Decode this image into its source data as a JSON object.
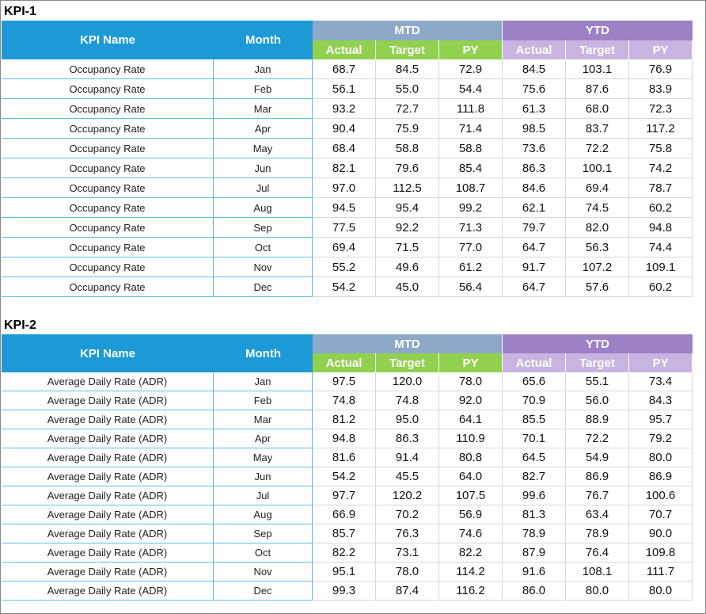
{
  "tables": [
    {
      "title": "KPI-1",
      "headers": {
        "kpi_name": "KPI Name",
        "month": "Month",
        "mtd": "MTD",
        "ytd": "YTD",
        "mtd_columns": [
          "Actual",
          "Target",
          "PY"
        ],
        "ytd_columns": [
          "Actual",
          "Target",
          "PY"
        ]
      },
      "rows": [
        [
          "Occupancy Rate",
          "Jan",
          "68.7",
          "84.5",
          "72.9",
          "84.5",
          "103.1",
          "76.9"
        ],
        [
          "Occupancy Rate",
          "Feb",
          "56.1",
          "55.0",
          "54.4",
          "75.6",
          "87.6",
          "83.9"
        ],
        [
          "Occupancy Rate",
          "Mar",
          "93.2",
          "72.7",
          "111.8",
          "61.3",
          "68.0",
          "72.3"
        ],
        [
          "Occupancy Rate",
          "Apr",
          "90.4",
          "75.9",
          "71.4",
          "98.5",
          "83.7",
          "117.2"
        ],
        [
          "Occupancy Rate",
          "May",
          "68.4",
          "58.8",
          "58.8",
          "73.6",
          "72.2",
          "75.8"
        ],
        [
          "Occupancy Rate",
          "Jun",
          "82.1",
          "79.6",
          "85.4",
          "86.3",
          "100.1",
          "74.2"
        ],
        [
          "Occupancy Rate",
          "Jul",
          "97.0",
          "112.5",
          "108.7",
          "84.6",
          "69.4",
          "78.7"
        ],
        [
          "Occupancy Rate",
          "Aug",
          "94.5",
          "95.4",
          "99.2",
          "62.1",
          "74.5",
          "60.2"
        ],
        [
          "Occupancy Rate",
          "Sep",
          "77.5",
          "92.2",
          "71.3",
          "79.7",
          "82.0",
          "94.8"
        ],
        [
          "Occupancy Rate",
          "Oct",
          "69.4",
          "71.5",
          "77.0",
          "64.7",
          "56.3",
          "74.4"
        ],
        [
          "Occupancy Rate",
          "Nov",
          "55.2",
          "49.6",
          "61.2",
          "91.7",
          "107.2",
          "109.1"
        ],
        [
          "Occupancy Rate",
          "Dec",
          "54.2",
          "45.0",
          "56.4",
          "64.7",
          "57.6",
          "60.2"
        ]
      ]
    },
    {
      "title": "KPI-2",
      "headers": {
        "kpi_name": "KPI Name",
        "month": "Month",
        "mtd": "MTD",
        "ytd": "YTD",
        "mtd_columns": [
          "Actual",
          "Target",
          "PY"
        ],
        "ytd_columns": [
          "Actual",
          "Target",
          "PY"
        ]
      },
      "rows": [
        [
          "Average Daily Rate (ADR)",
          "Jan",
          "97.5",
          "120.0",
          "78.0",
          "65.6",
          "55.1",
          "73.4"
        ],
        [
          "Average Daily Rate (ADR)",
          "Feb",
          "74.8",
          "74.8",
          "92.0",
          "70.9",
          "56.0",
          "84.3"
        ],
        [
          "Average Daily Rate (ADR)",
          "Mar",
          "81.2",
          "95.0",
          "64.1",
          "85.5",
          "88.9",
          "95.7"
        ],
        [
          "Average Daily Rate (ADR)",
          "Apr",
          "94.8",
          "86.3",
          "110.9",
          "70.1",
          "72.2",
          "79.2"
        ],
        [
          "Average Daily Rate (ADR)",
          "May",
          "81.6",
          "91.4",
          "80.8",
          "64.5",
          "54.9",
          "80.0"
        ],
        [
          "Average Daily Rate (ADR)",
          "Jun",
          "54.2",
          "45.5",
          "64.0",
          "82.7",
          "86.9",
          "86.9"
        ],
        [
          "Average Daily Rate (ADR)",
          "Jul",
          "97.7",
          "120.2",
          "107.5",
          "99.6",
          "76.7",
          "100.6"
        ],
        [
          "Average Daily Rate (ADR)",
          "Aug",
          "66.9",
          "70.2",
          "56.9",
          "81.3",
          "63.4",
          "70.7"
        ],
        [
          "Average Daily Rate (ADR)",
          "Sep",
          "85.7",
          "76.3",
          "74.6",
          "78.9",
          "78.9",
          "90.0"
        ],
        [
          "Average Daily Rate (ADR)",
          "Oct",
          "82.2",
          "73.1",
          "82.2",
          "87.9",
          "76.4",
          "109.8"
        ],
        [
          "Average Daily Rate (ADR)",
          "Nov",
          "95.1",
          "78.0",
          "114.2",
          "91.6",
          "108.1",
          "111.7"
        ],
        [
          "Average Daily Rate (ADR)",
          "Dec",
          "99.3",
          "87.4",
          "116.2",
          "86.0",
          "80.0",
          "80.0"
        ]
      ]
    }
  ]
}
